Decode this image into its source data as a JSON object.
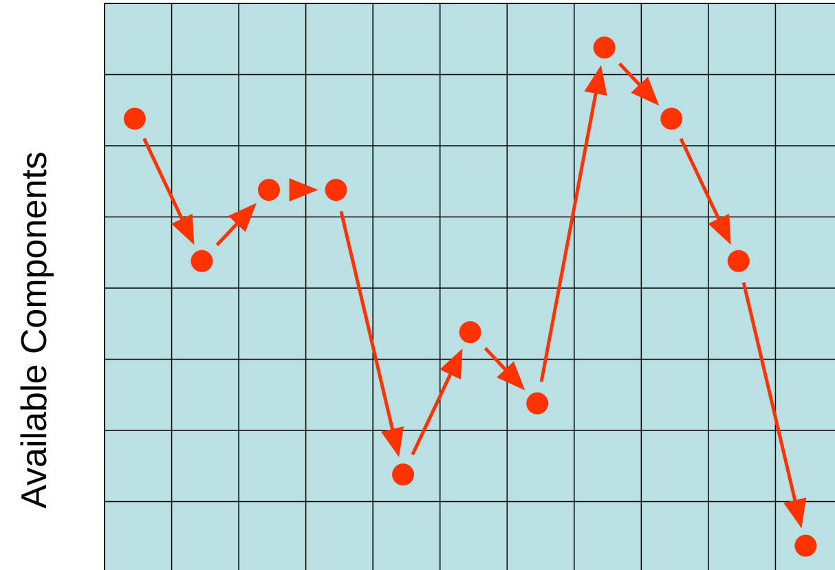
{
  "chart_data": {
    "type": "scatter",
    "ylabel": "Available Components",
    "xlabel": "",
    "title": "",
    "grid": true,
    "xlim": [
      0,
      11
    ],
    "ylim": [
      0,
      8
    ],
    "points": [
      {
        "x": 0.45,
        "y": 6.38
      },
      {
        "x": 1.45,
        "y": 4.38
      },
      {
        "x": 2.45,
        "y": 5.38
      },
      {
        "x": 3.45,
        "y": 5.38
      },
      {
        "x": 4.45,
        "y": 1.38
      },
      {
        "x": 5.45,
        "y": 3.38
      },
      {
        "x": 6.45,
        "y": 2.38
      },
      {
        "x": 7.45,
        "y": 7.38
      },
      {
        "x": 8.45,
        "y": 6.38
      },
      {
        "x": 9.45,
        "y": 4.38
      },
      {
        "x": 10.45,
        "y": 0.38
      }
    ],
    "connected_by": "arrows",
    "colors": {
      "background": "#bbe0e3",
      "grid": "#000000",
      "marker": "#ff3300",
      "arrow": "#ff3300"
    }
  }
}
